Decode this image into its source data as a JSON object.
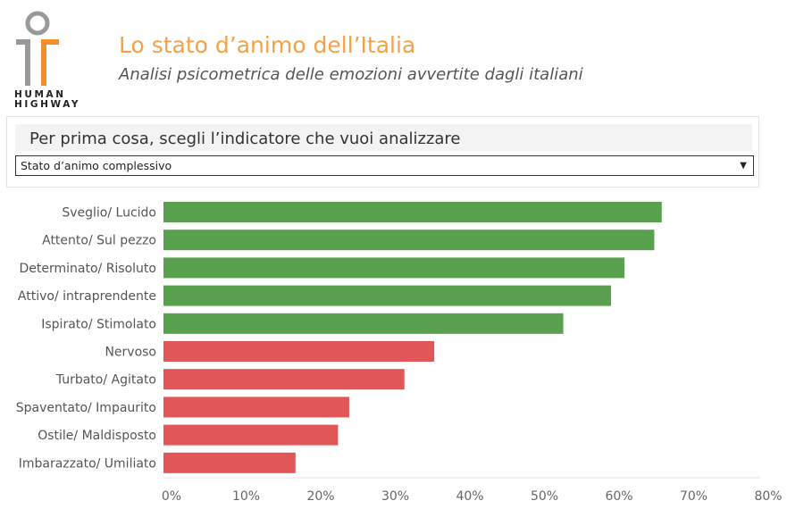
{
  "header": {
    "logo_text": "HUMAN HIGHWAY",
    "logo_line1": "HUMAN",
    "logo_line2": "HIGHWAY",
    "title": "Lo stato d’animo dell’Italia",
    "subtitle": "Analisi psicometrica delle emozioni avvertite dagli italiani"
  },
  "filter": {
    "label": "Per prima cosa, scegli l’indicatore che vuoi analizzare",
    "selected": "Stato d’animo complessivo"
  },
  "colors": {
    "positive": "#59a14f",
    "negative": "#e15759",
    "brand": "#f5a147"
  },
  "chart_data": {
    "type": "bar",
    "orientation": "horizontal",
    "categories": [
      "Sveglio/ Lucido",
      "Attento/ Sul pezzo",
      "Determinato/ Risoluto",
      "Attivo/ intraprendente",
      "Ispirato/ Stimolato",
      "Nervoso",
      "Turbato/ Agitato",
      "Spaventato/ Impaurito",
      "Ostile/ Maldisposto",
      "Imbarazzato/ Umiliato"
    ],
    "values": [
      66.8,
      65.8,
      61.8,
      60.0,
      53.6,
      36.3,
      32.3,
      24.9,
      23.4,
      17.7
    ],
    "sentiment": [
      "positive",
      "positive",
      "positive",
      "positive",
      "positive",
      "negative",
      "negative",
      "negative",
      "negative",
      "negative"
    ],
    "xlim": [
      0,
      80
    ],
    "ticks": [
      "0%",
      "10%",
      "20%",
      "30%",
      "40%",
      "50%",
      "60%",
      "70%",
      "80%"
    ],
    "tick_values": [
      0,
      10,
      20,
      30,
      40,
      50,
      60,
      70,
      80
    ],
    "grid": false
  }
}
